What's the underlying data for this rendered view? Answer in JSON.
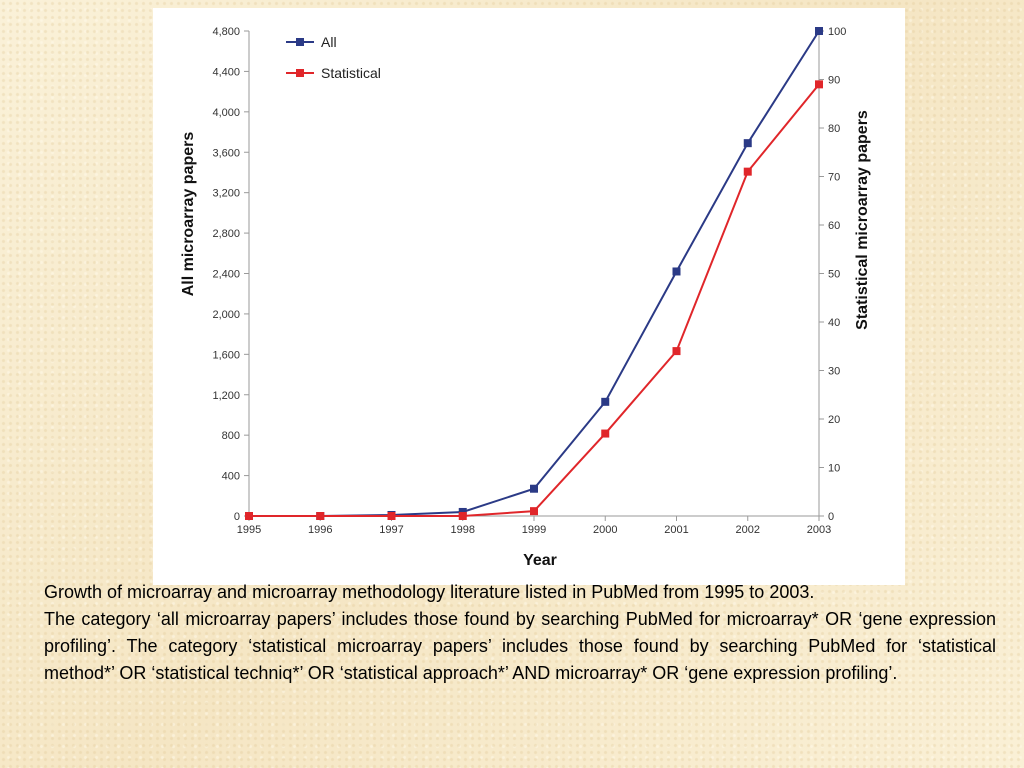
{
  "chart_data": {
    "type": "line",
    "xlabel": "Year",
    "ylabel_left": "All microarray papers",
    "ylabel_right": "Statistical microarray papers",
    "categories": [
      "1995",
      "1996",
      "1997",
      "1998",
      "1999",
      "2000",
      "2001",
      "2002",
      "2003"
    ],
    "y_left": {
      "lim": [
        0,
        4800
      ],
      "ticks": [
        "0",
        "400",
        "800",
        "1,200",
        "1,600",
        "2,000",
        "2,400",
        "2,800",
        "3,200",
        "3,600",
        "4,000",
        "4,400",
        "4,800"
      ]
    },
    "y_right": {
      "lim": [
        0,
        100
      ],
      "ticks": [
        "0",
        "10",
        "20",
        "30",
        "40",
        "50",
        "60",
        "70",
        "80",
        "90",
        "100"
      ]
    },
    "grid": false,
    "legend_position": "top-left",
    "series": [
      {
        "name": "All",
        "axis": "left",
        "color": "#2b3a86",
        "values": [
          0,
          0,
          10,
          40,
          270,
          1130,
          2420,
          3690,
          4800
        ]
      },
      {
        "name": "Statistical",
        "axis": "right",
        "color": "#e0262a",
        "values": [
          0,
          0,
          0,
          0,
          1,
          17,
          34,
          71,
          89
        ]
      }
    ]
  },
  "caption": {
    "heading": "Growth of microarray and microarray methodology literature listed in PubMed from 1995 to 2003.",
    "body_1": "The category ",
    "quote_1": "‘all microarray papers’",
    "body_2": " includes those found by searching PubMed for microarray* OR ‘gene expression profiling’.  The category ",
    "quote_2": "‘statistical microarray papers’",
    "body_3": " includes those found by searching PubMed for ‘statistical method*’ OR ‘statistical techniq*’ OR ‘statistical approach*’ AND microarray* OR ‘gene expression profiling’."
  }
}
